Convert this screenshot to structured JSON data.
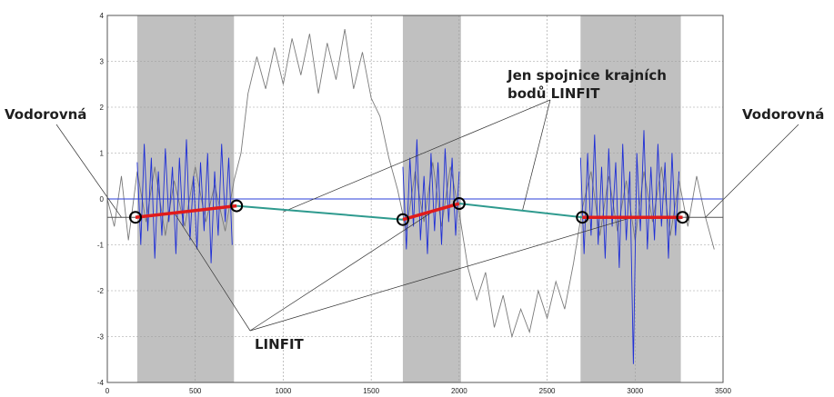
{
  "chart_data": {
    "type": "line",
    "xlim": [
      0,
      3500
    ],
    "ylim": [
      -4,
      4
    ],
    "x_ticks": [
      "0",
      "500",
      "1000",
      "1500",
      "2000",
      "2500",
      "3000",
      "3500"
    ],
    "y_ticks": [
      "4",
      "3",
      "2",
      "1",
      "0",
      "-1",
      "-2",
      "-3",
      "-4"
    ],
    "grid": true,
    "shaded_regions": [
      [
        170,
        720
      ],
      [
        1680,
        2010
      ],
      [
        2690,
        3260
      ]
    ],
    "reference_level": 0,
    "horizontal_segments": [
      {
        "x": [
          0,
          170
        ],
        "y": -0.4
      },
      {
        "x": [
          3260,
          3500
        ],
        "y": -0.4
      }
    ],
    "linfit_segments": [
      {
        "x": [
          160,
          735
        ],
        "y": [
          -0.4,
          -0.15
        ]
      },
      {
        "x": [
          1680,
          2000
        ],
        "y": [
          -0.45,
          -0.1
        ]
      },
      {
        "x": [
          2700,
          3270
        ],
        "y": [
          -0.4,
          -0.4
        ]
      }
    ],
    "connector_segments": [
      {
        "x": [
          735,
          1680
        ],
        "y": [
          -0.15,
          -0.45
        ]
      },
      {
        "x": [
          2000,
          2700
        ],
        "y": [
          -0.1,
          -0.4
        ]
      }
    ],
    "endpoints": [
      {
        "x": 160,
        "y": -0.4
      },
      {
        "x": 735,
        "y": -0.15
      },
      {
        "x": 1680,
        "y": -0.45
      },
      {
        "x": 2000,
        "y": -0.1
      },
      {
        "x": 2700,
        "y": -0.4
      },
      {
        "x": 3270,
        "y": -0.4
      }
    ],
    "signal_gray": [
      [
        0,
        0.0
      ],
      [
        40,
        -0.6
      ],
      [
        80,
        0.5
      ],
      [
        120,
        -0.9
      ],
      [
        170,
        0.6
      ],
      [
        220,
        -0.5
      ],
      [
        270,
        0.7
      ],
      [
        330,
        -0.8
      ],
      [
        380,
        0.4
      ],
      [
        440,
        -0.6
      ],
      [
        500,
        0.7
      ],
      [
        560,
        -0.5
      ],
      [
        610,
        0.3
      ],
      [
        670,
        -0.7
      ],
      [
        720,
        0.4
      ],
      [
        760,
        1.0
      ],
      [
        800,
        2.3
      ],
      [
        850,
        3.1
      ],
      [
        900,
        2.4
      ],
      [
        950,
        3.3
      ],
      [
        1000,
        2.5
      ],
      [
        1050,
        3.5
      ],
      [
        1100,
        2.7
      ],
      [
        1150,
        3.6
      ],
      [
        1200,
        2.3
      ],
      [
        1250,
        3.4
      ],
      [
        1300,
        2.6
      ],
      [
        1350,
        3.7
      ],
      [
        1400,
        2.4
      ],
      [
        1450,
        3.2
      ],
      [
        1500,
        2.2
      ],
      [
        1550,
        1.8
      ],
      [
        1600,
        0.9
      ],
      [
        1650,
        0.2
      ],
      [
        1700,
        -0.7
      ],
      [
        1750,
        0.6
      ],
      [
        1800,
        -0.5
      ],
      [
        1850,
        0.8
      ],
      [
        1900,
        -0.6
      ],
      [
        1950,
        0.7
      ],
      [
        2000,
        -0.3
      ],
      [
        2050,
        -1.5
      ],
      [
        2100,
        -2.2
      ],
      [
        2150,
        -1.6
      ],
      [
        2200,
        -2.8
      ],
      [
        2250,
        -2.1
      ],
      [
        2300,
        -3.0
      ],
      [
        2350,
        -2.4
      ],
      [
        2400,
        -2.9
      ],
      [
        2450,
        -2.0
      ],
      [
        2500,
        -2.6
      ],
      [
        2550,
        -1.8
      ],
      [
        2600,
        -2.4
      ],
      [
        2650,
        -1.4
      ],
      [
        2700,
        -0.2
      ],
      [
        2750,
        0.6
      ],
      [
        2800,
        -0.8
      ],
      [
        2850,
        0.5
      ],
      [
        2900,
        -0.7
      ],
      [
        2950,
        0.4
      ],
      [
        3000,
        -0.9
      ],
      [
        3050,
        0.6
      ],
      [
        3100,
        -0.5
      ],
      [
        3150,
        0.7
      ],
      [
        3200,
        -0.8
      ],
      [
        3250,
        0.4
      ],
      [
        3300,
        -0.6
      ],
      [
        3350,
        0.5
      ],
      [
        3400,
        -0.4
      ],
      [
        3450,
        -1.1
      ]
    ],
    "signal_blue": [
      [
        170,
        0.8
      ],
      [
        190,
        -1.0
      ],
      [
        210,
        1.2
      ],
      [
        230,
        -0.7
      ],
      [
        250,
        0.9
      ],
      [
        270,
        -1.3
      ],
      [
        290,
        0.6
      ],
      [
        310,
        -0.8
      ],
      [
        330,
        1.1
      ],
      [
        350,
        -0.5
      ],
      [
        370,
        0.7
      ],
      [
        390,
        -1.2
      ],
      [
        410,
        0.9
      ],
      [
        430,
        -0.6
      ],
      [
        450,
        1.3
      ],
      [
        470,
        -0.9
      ],
      [
        490,
        0.5
      ],
      [
        510,
        -1.1
      ],
      [
        530,
        0.8
      ],
      [
        550,
        -0.7
      ],
      [
        570,
        1.0
      ],
      [
        590,
        -1.4
      ],
      [
        610,
        0.6
      ],
      [
        630,
        -0.8
      ],
      [
        650,
        1.2
      ],
      [
        670,
        -0.5
      ],
      [
        690,
        0.9
      ],
      [
        710,
        -1.0
      ],
      [
        1680,
        0.7
      ],
      [
        1700,
        -1.1
      ],
      [
        1720,
        0.9
      ],
      [
        1740,
        -0.6
      ],
      [
        1760,
        1.3
      ],
      [
        1780,
        -0.9
      ],
      [
        1800,
        0.5
      ],
      [
        1820,
        -1.2
      ],
      [
        1840,
        1.0
      ],
      [
        1860,
        -0.7
      ],
      [
        1880,
        0.8
      ],
      [
        1900,
        -1.0
      ],
      [
        1920,
        1.1
      ],
      [
        1940,
        -0.5
      ],
      [
        1960,
        0.9
      ],
      [
        1980,
        -0.8
      ],
      [
        2000,
        0.6
      ],
      [
        2690,
        0.9
      ],
      [
        2710,
        -1.2
      ],
      [
        2730,
        1.0
      ],
      [
        2750,
        -0.8
      ],
      [
        2770,
        1.4
      ],
      [
        2790,
        -1.0
      ],
      [
        2810,
        0.7
      ],
      [
        2830,
        -1.3
      ],
      [
        2850,
        1.1
      ],
      [
        2870,
        -0.6
      ],
      [
        2890,
        0.8
      ],
      [
        2910,
        -1.5
      ],
      [
        2930,
        1.2
      ],
      [
        2950,
        -0.9
      ],
      [
        2970,
        0.6
      ],
      [
        2990,
        -3.6
      ],
      [
        3010,
        1.0
      ],
      [
        3030,
        -0.7
      ],
      [
        3050,
        1.5
      ],
      [
        3070,
        -1.1
      ],
      [
        3090,
        0.7
      ],
      [
        3110,
        -0.9
      ],
      [
        3130,
        1.2
      ],
      [
        3150,
        -0.6
      ],
      [
        3170,
        0.8
      ],
      [
        3190,
        -1.3
      ],
      [
        3210,
        1.0
      ],
      [
        3230,
        -0.8
      ],
      [
        3250,
        0.6
      ]
    ],
    "annotations": {
      "left_label": "Vodorovná",
      "right_label": "Vodorovná",
      "connector_label_line1": "Jen spojnice krajních",
      "connector_label_line2": "bodů LINFIT",
      "linfit_label": "LINFIT"
    },
    "colors": {
      "shade": "#c0c0c0",
      "signal_gray": "#7a7a7a",
      "signal_blue": "#1f2fd6",
      "reference": "#2b3fd9",
      "linfit": "#e01b1b",
      "connector": "#2e9a8e",
      "annotation_line": "#333333",
      "marker": "#000000"
    }
  }
}
